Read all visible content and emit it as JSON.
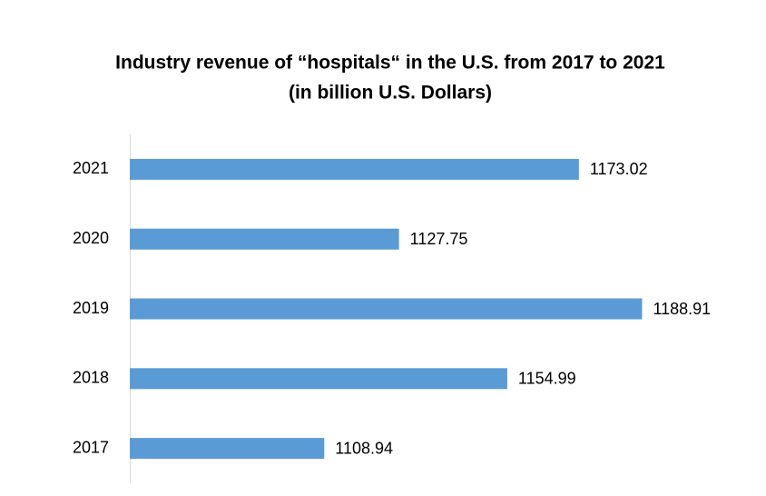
{
  "chart_data": {
    "type": "hbar",
    "title": [
      "Industry revenue of “hospitals“ in the U.S. from 2017 to 2021",
      "(in billion U.S. Dollars)"
    ],
    "categories": [
      "2017",
      "2018",
      "2019",
      "2020",
      "2021"
    ],
    "values": [
      1108.94,
      1154.99,
      1188.91,
      1127.75,
      1173.02
    ],
    "color": "#5b9bd5",
    "xlim": [
      1060,
      1200
    ]
  }
}
